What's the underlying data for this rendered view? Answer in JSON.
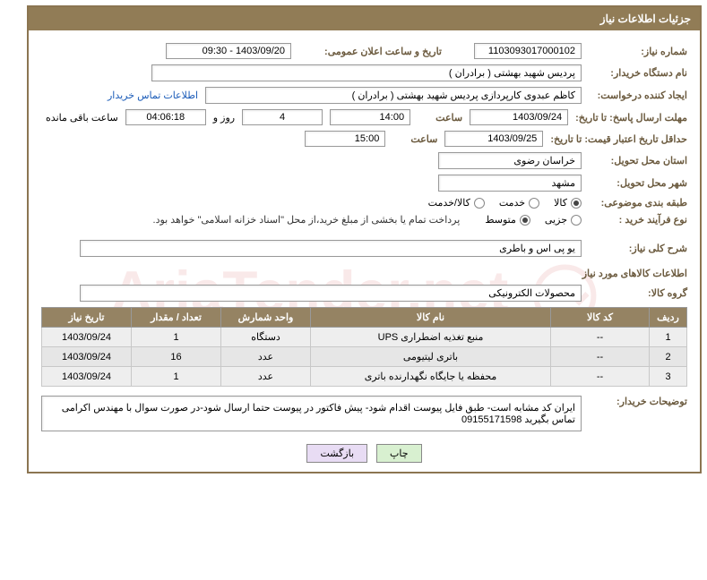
{
  "header": {
    "title": "جزئیات اطلاعات نیاز"
  },
  "fields": {
    "need_number_label": "شماره نیاز:",
    "need_number": "1103093017000102",
    "announce_label": "تاریخ و ساعت اعلان عمومی:",
    "announce_value": "1403/09/20 - 09:30",
    "buyer_org_label": "نام دستگاه خریدار:",
    "buyer_org": "پردیس شهید بهشتی ( برادران )",
    "requester_label": "ایجاد کننده درخواست:",
    "requester": "کاظم  عبدوی  کارپردازی  پردیس شهید بهشتی ( برادران )",
    "contact_link": "اطلاعات تماس خریدار",
    "deadline_label": "مهلت ارسال پاسخ: تا تاریخ:",
    "deadline_date": "1403/09/24",
    "hour_label": "ساعت",
    "deadline_time": "14:00",
    "days_val": "4",
    "days_suffix": "روز و",
    "countdown": "04:06:18",
    "remain_suffix": "ساعت باقی مانده",
    "validity_label": "حداقل تاریخ اعتبار قیمت: تا تاریخ:",
    "validity_date": "1403/09/25",
    "validity_time": "15:00",
    "province_label": "استان محل تحویل:",
    "province": "خراسان رضوی",
    "city_label": "شهر محل تحویل:",
    "city": "مشهد",
    "category_label": "طبقه بندی موضوعی:",
    "cat_goods": "کالا",
    "cat_service": "خدمت",
    "cat_both": "کالا/خدمت",
    "process_label": "نوع فرآیند خرید :",
    "proc_partial": "جزیی",
    "proc_medium": "متوسط",
    "process_note": "پرداخت تمام یا بخشی از مبلغ خرید،از محل \"اسناد خزانه اسلامی\" خواهد بود.",
    "summary_label": "شرح کلی نیاز:",
    "summary": "یو پی اس و باطری",
    "items_title": "اطلاعات کالاهای مورد نیاز",
    "group_label": "گروه کالا:",
    "group": "محصولات الکترونیکی"
  },
  "table": {
    "headers": {
      "row": "ردیف",
      "code": "کد کالا",
      "name": "نام کالا",
      "unit": "واحد شمارش",
      "qty": "تعداد / مقدار",
      "date": "تاریخ نیاز"
    },
    "rows": [
      {
        "n": "1",
        "code": "--",
        "name": "منبع تغذیه اضطراری UPS",
        "unit": "دستگاه",
        "qty": "1",
        "date": "1403/09/24"
      },
      {
        "n": "2",
        "code": "--",
        "name": "باتری لیتیومی",
        "unit": "عدد",
        "qty": "16",
        "date": "1403/09/24"
      },
      {
        "n": "3",
        "code": "--",
        "name": "محفظه یا جایگاه نگهدارنده باتری",
        "unit": "عدد",
        "qty": "1",
        "date": "1403/09/24"
      }
    ]
  },
  "desc": {
    "label": "توضیحات خریدار:",
    "text": "ایران کد مشابه است- طبق فایل پیوست اقدام شود- پیش فاکتور در پیوست حتما ارسال شود-در صورت سوال با مهندس اکرامی  تماس بگیرید 09155171598"
  },
  "buttons": {
    "print": "چاپ",
    "back": "بازگشت"
  },
  "colors": {
    "header_bg": "#917c56",
    "label_color": "#6b5a3e",
    "th_bg": "#958363",
    "border": "#8b7551"
  },
  "watermark": "AriaTender.net"
}
